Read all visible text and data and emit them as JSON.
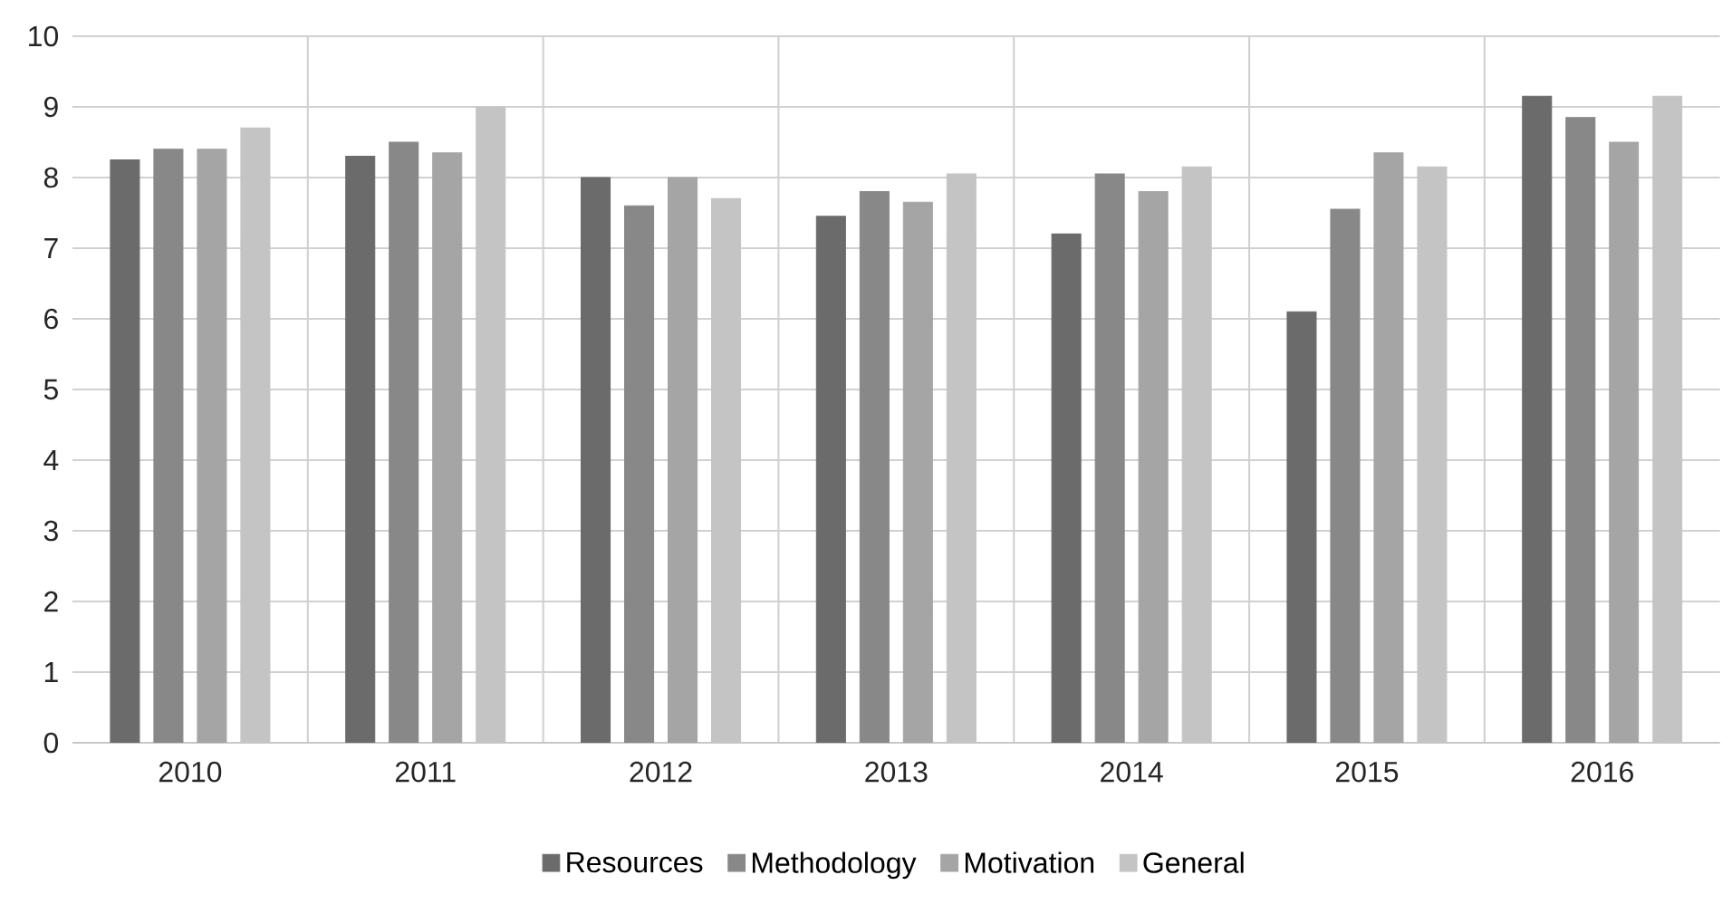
{
  "chart_data": {
    "type": "bar",
    "categories": [
      "2010",
      "2011",
      "2012",
      "2013",
      "2014",
      "2015",
      "2016"
    ],
    "series": [
      {
        "name": "Resources",
        "color": "#6b6b6b",
        "values": [
          8.25,
          8.3,
          8.0,
          7.45,
          7.2,
          6.1,
          9.15
        ]
      },
      {
        "name": "Methodology",
        "color": "#888888",
        "values": [
          8.4,
          8.5,
          7.6,
          7.8,
          8.05,
          7.55,
          8.85
        ]
      },
      {
        "name": "Motivation",
        "color": "#a5a5a5",
        "values": [
          8.4,
          8.35,
          8.0,
          7.65,
          7.8,
          8.35,
          8.5
        ]
      },
      {
        "name": "General",
        "color": "#c4c4c4",
        "values": [
          8.7,
          9.0,
          7.7,
          8.05,
          8.15,
          8.15,
          9.15
        ]
      }
    ],
    "ylim": [
      0,
      10
    ],
    "yticks": [
      0,
      1,
      2,
      3,
      4,
      5,
      6,
      7,
      8,
      9,
      10
    ],
    "grid": true,
    "legend": "bottom"
  }
}
